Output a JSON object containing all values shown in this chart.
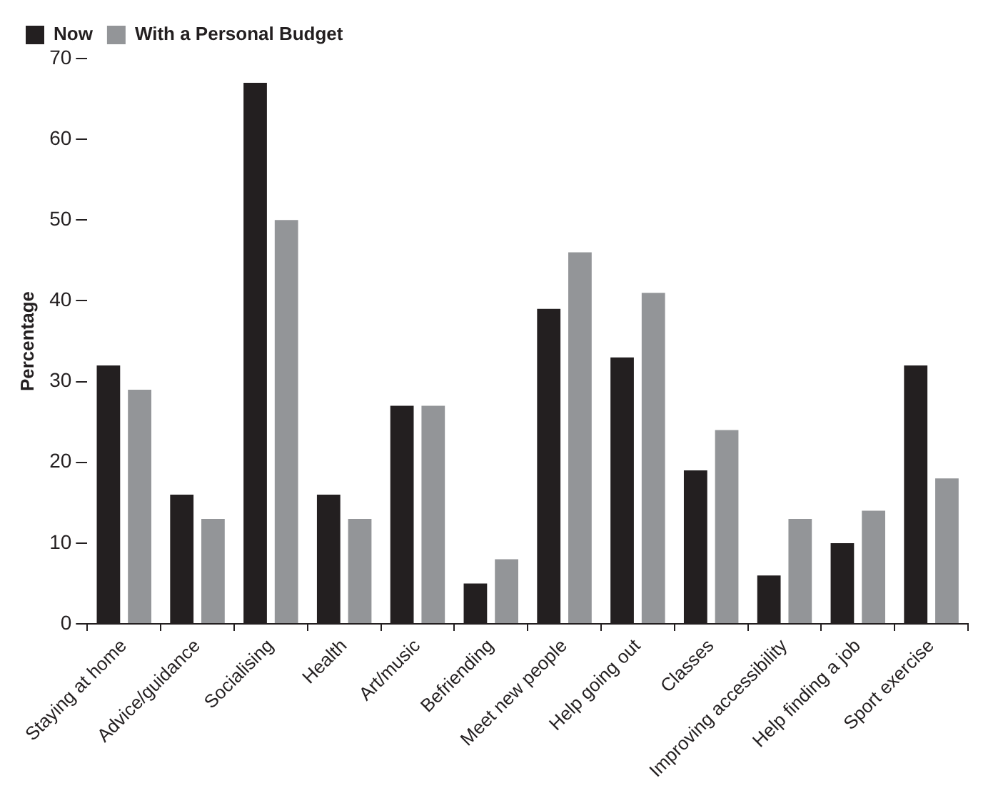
{
  "chart_data": {
    "type": "bar",
    "ylabel": "Percentage",
    "categories": [
      "Staying at home",
      "Advice/guidance",
      "Socialising",
      "Health",
      "Art/music",
      "Befriending",
      "Meet new people",
      "Help going out",
      "Classes",
      "Improving accessibility",
      "Help finding a job",
      "Sport exercise"
    ],
    "series": [
      {
        "name": "Now",
        "color": "#231f20",
        "values": [
          32,
          16,
          67,
          16,
          27,
          5,
          39,
          33,
          19,
          6,
          10,
          32
        ]
      },
      {
        "name": "With a Personal Budget",
        "color": "#939598",
        "values": [
          29,
          13,
          50,
          13,
          27,
          8,
          46,
          41,
          24,
          13,
          14,
          18
        ]
      }
    ],
    "ylim": [
      0,
      70
    ],
    "yticks": [
      0,
      10,
      20,
      30,
      40,
      50,
      60,
      70
    ],
    "grid": false,
    "legend": "top left"
  }
}
